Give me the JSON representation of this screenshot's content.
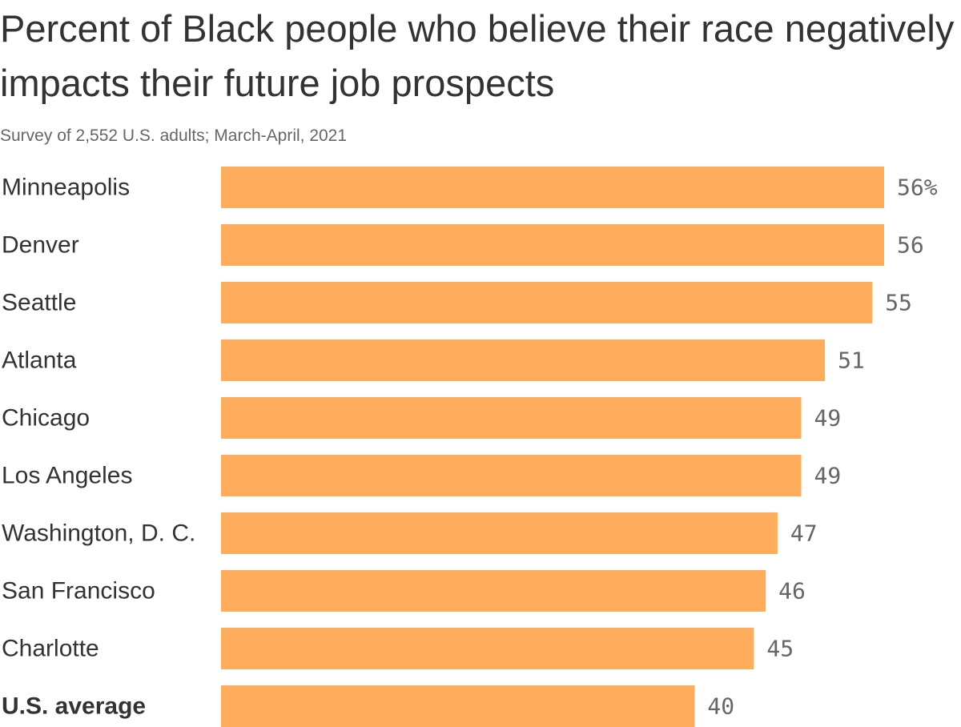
{
  "chart_data": {
    "type": "bar",
    "orientation": "horizontal",
    "title": "Percent of Black people who believe their race negatively impacts their future job prospects",
    "subtitle": "Survey of 2,552 U.S. adults; March-April, 2021",
    "categories": [
      "Minneapolis",
      "Denver",
      "Seattle",
      "Atlanta",
      "Chicago",
      "Los Angeles",
      "Washington, D. C.",
      "San Francisco",
      "Charlotte",
      "U.S. average"
    ],
    "values": [
      56,
      56,
      55,
      51,
      49,
      49,
      47,
      46,
      45,
      40
    ],
    "value_labels": [
      "56%",
      "56",
      "55",
      "51",
      "49",
      "49",
      "47",
      "46",
      "45",
      "40"
    ],
    "bold_categories": [
      "U.S. average"
    ],
    "bar_color": "#ffad5c",
    "xlim": [
      0,
      56
    ],
    "grid": false,
    "legend": "none"
  }
}
